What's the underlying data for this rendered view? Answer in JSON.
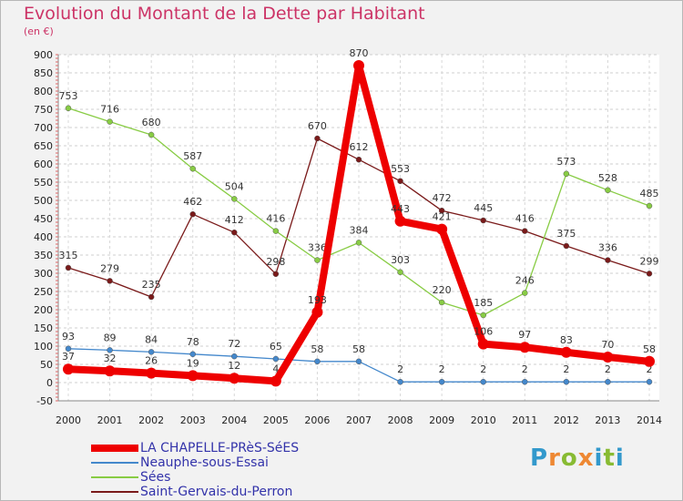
{
  "title": "Evolution du Montant de la Dette par Habitant",
  "unit": "(en €)",
  "brand": "Proxiti",
  "chart_data": {
    "type": "line",
    "title": "Evolution du Montant de la Dette par Habitant",
    "ylabel": "(en €)",
    "xlabel": "",
    "ylim": [
      -50,
      900
    ],
    "yticks": [
      -50,
      0,
      50,
      100,
      150,
      200,
      250,
      300,
      350,
      400,
      450,
      500,
      550,
      600,
      650,
      700,
      750,
      800,
      850,
      900
    ],
    "x": [
      "2000",
      "2001",
      "2002",
      "2003",
      "2004",
      "2005",
      "2006",
      "2007",
      "2008",
      "2009",
      "2010",
      "2011",
      "2012",
      "2013",
      "2014"
    ],
    "grid": true,
    "legend_position": "bottom-left",
    "series": [
      {
        "name": "Saint-Gervais-du-Perron",
        "color": "#7a1a1a",
        "values": [
          315,
          279,
          235,
          462,
          412,
          298,
          670,
          612,
          553,
          472,
          445,
          416,
          375,
          336,
          299
        ],
        "labels": [
          "315",
          "279",
          "235",
          "462",
          "412",
          "298",
          "670",
          "612",
          "553",
          "472",
          "445",
          "416",
          "375",
          "336",
          "299"
        ]
      },
      {
        "name": "Sées",
        "color": "#88cc44",
        "values": [
          753,
          716,
          680,
          587,
          504,
          416,
          336,
          384,
          303,
          220,
          185,
          246,
          573,
          528,
          485
        ],
        "labels": [
          "753",
          "716",
          "680",
          "587",
          "504",
          "416",
          "336",
          "384",
          "303",
          "220",
          "185",
          "246",
          "573",
          "528",
          "485"
        ]
      },
      {
        "name": "Neauphe-sous-Essai",
        "color": "#4488cc",
        "values": [
          93,
          89,
          84,
          78,
          72,
          65,
          58,
          58,
          2,
          2,
          2,
          2,
          2,
          2,
          2
        ],
        "labels": [
          "93",
          "89",
          "84",
          "78",
          "72",
          "65",
          "58",
          "58",
          "2",
          "2",
          "2",
          "2",
          "2",
          "2",
          "2"
        ]
      },
      {
        "name": "LA CHAPELLE-PRèS-SéES",
        "color": "#ee0000",
        "values": [
          37,
          32,
          26,
          19,
          12,
          4,
          193,
          870,
          443,
          421,
          106,
          97,
          83,
          70,
          58
        ],
        "labels": [
          "37",
          "32",
          "26",
          "19",
          "12",
          "4",
          "193",
          "870",
          "443",
          "421",
          "106",
          "97",
          "83",
          "70",
          "58"
        ]
      }
    ],
    "legend": [
      "LA CHAPELLE-PRèS-SéES",
      "Neauphe-sous-Essai",
      "Sées",
      "Saint-Gervais-du-Perron"
    ]
  },
  "legend_colors": {
    "LA CHAPELLE-PRèS-SéES": "#ee0000",
    "Neauphe-sous-Essai": "#4488cc",
    "Sées": "#88cc44",
    "Saint-Gervais-du-Perron": "#7a1a1a"
  }
}
